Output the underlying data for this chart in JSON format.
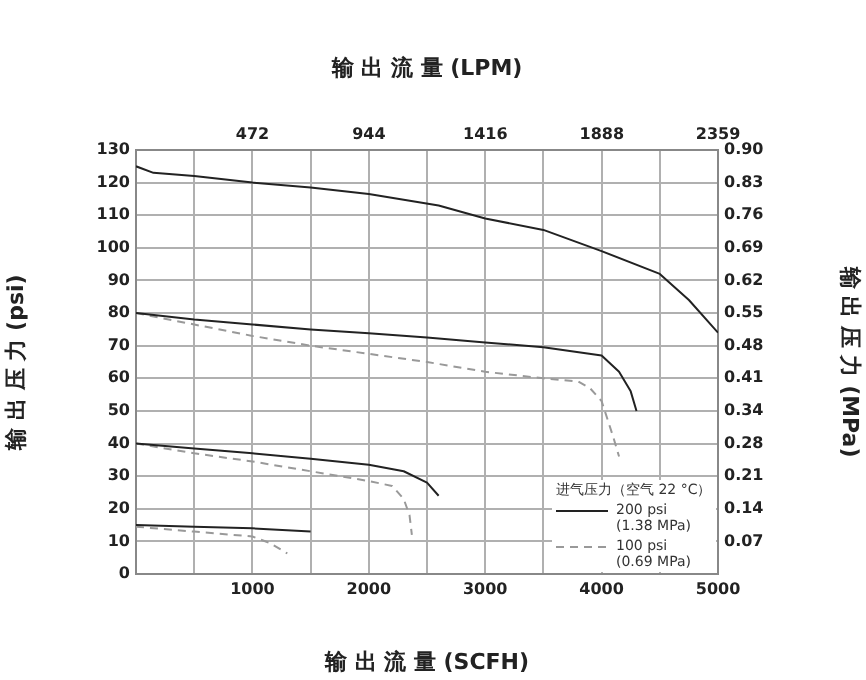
{
  "chart_data": {
    "type": "line",
    "xlabel": "输 出 流 量 (SCFH)",
    "x2label": "输 出 流 量 (LPM)",
    "ylabel": "输 出 压 力 (psi)",
    "y2label": "输 出 压 力 (MPa)",
    "legend_title": "进气压力（空气 22 °C）",
    "xlim": [
      0,
      5000
    ],
    "xticks": [
      {
        "value": 500,
        "label": null
      },
      1000,
      {
        "value": 1500,
        "label": null
      },
      2000,
      {
        "value": 2500,
        "label": null
      },
      3000,
      {
        "value": 3500,
        "label": null
      },
      4000,
      {
        "value": 4500,
        "label": null
      },
      5000
    ],
    "x2lim": [
      0,
      2359
    ],
    "x2ticks": [
      472,
      944,
      1416,
      1888,
      2359
    ],
    "ylim": [
      0,
      130
    ],
    "yticks": [
      0,
      10,
      20,
      30,
      40,
      50,
      60,
      70,
      80,
      90,
      100,
      110,
      120,
      130
    ],
    "y2lim": [
      0,
      0.8963
    ],
    "y2ticks": [
      {
        "value": 0.0689,
        "label": "0.07"
      },
      {
        "value": 0.1379,
        "label": "0.14"
      },
      {
        "value": 0.2068,
        "label": "0.21"
      },
      {
        "value": 0.2758,
        "label": "0.28"
      },
      {
        "value": 0.3447,
        "label": "0.34"
      },
      {
        "value": 0.4137,
        "label": "0.41"
      },
      {
        "value": 0.4826,
        "label": "0.48"
      },
      {
        "value": 0.5516,
        "label": "0.55"
      },
      {
        "value": 0.6205,
        "label": "0.62"
      },
      {
        "value": 0.6895,
        "label": "0.69"
      },
      {
        "value": 0.7584,
        "label": "0.76"
      },
      {
        "value": 0.8274,
        "label": "0.83"
      },
      {
        "value": 0.8963,
        "label": "0.90"
      }
    ],
    "grid": true,
    "legend": "bottom right",
    "marker": "none",
    "series": [
      {
        "name": "200 psi (1.38 MPa)",
        "color": "#222222",
        "line_style": "solid",
        "x": [
          0,
          150,
          500,
          1000,
          1500,
          2000,
          2600,
          3000,
          3500,
          4000,
          4500,
          4750,
          5000
        ],
        "values": [
          125,
          123,
          122,
          120,
          118.5,
          116.5,
          113,
          109,
          105.5,
          99,
          92,
          84,
          74
        ]
      },
      {
        "color": "#222222",
        "line_style": "solid",
        "x": [
          0,
          500,
          1000,
          1500,
          2000,
          2500,
          3000,
          3500,
          4000,
          4150,
          4250,
          4300
        ],
        "values": [
          80,
          78,
          76.5,
          75,
          73.8,
          72.5,
          71,
          69.5,
          67,
          62,
          56,
          50
        ]
      },
      {
        "name": "100 psi (0.69 MPa)",
        "color": "#999999",
        "line_style": "dashed",
        "x": [
          0,
          500,
          1000,
          1500,
          2000,
          2500,
          3000,
          3500,
          3800,
          3900,
          4000,
          4100,
          4150
        ],
        "values": [
          80,
          76.5,
          73,
          70,
          67.5,
          65,
          62,
          60,
          59,
          57,
          53,
          42,
          36
        ]
      },
      {
        "color": "#222222",
        "line_style": "solid",
        "x": [
          0,
          500,
          1000,
          1500,
          2000,
          2300,
          2500,
          2600
        ],
        "values": [
          40,
          38.5,
          37,
          35.3,
          33.5,
          31.5,
          28,
          24
        ]
      },
      {
        "color": "#999999",
        "line_style": "dashed",
        "x": [
          0,
          500,
          1000,
          1500,
          2000,
          2200,
          2300,
          2350,
          2370
        ],
        "values": [
          40,
          37,
          34.5,
          31.5,
          28.5,
          27,
          23,
          18,
          12
        ]
      },
      {
        "color": "#222222",
        "line_style": "solid",
        "x": [
          0,
          500,
          1000,
          1500
        ],
        "values": [
          15,
          14.5,
          14,
          13
        ]
      },
      {
        "color": "#999999",
        "line_style": "dashed",
        "x": [
          0,
          500,
          1000,
          1150,
          1300
        ],
        "values": [
          14.5,
          13,
          11.5,
          9.5,
          6.3
        ]
      }
    ]
  }
}
